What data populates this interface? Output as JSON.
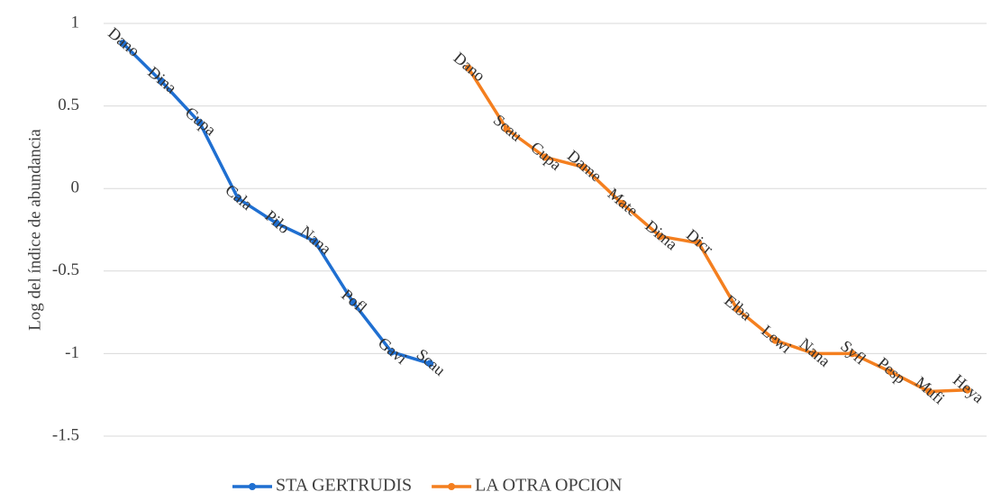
{
  "chart_data": {
    "type": "line",
    "y_label": "Log del índice de abundancia",
    "categories": [
      null,
      null,
      null,
      null,
      null,
      null,
      null,
      null,
      null,
      null,
      null,
      null,
      null,
      null,
      null,
      null,
      null,
      null,
      null,
      null,
      null,
      null,
      null
    ],
    "series": [
      {
        "name": "STA GERTRUDIS",
        "color": "#1f6fd1",
        "values": [
          0.88,
          0.65,
          0.4,
          -0.06,
          -0.21,
          -0.32,
          -0.69,
          -0.99,
          -1.06,
          null,
          null,
          null,
          null,
          null,
          null,
          null,
          null,
          null,
          null,
          null,
          null,
          null,
          null
        ],
        "point_labels": [
          "Dano",
          "Dina",
          "Cupa",
          "Cala",
          "Pilo",
          "Nana",
          "Pofl",
          "Gavi",
          "Scau",
          null,
          null,
          null,
          null,
          null,
          null,
          null,
          null,
          null,
          null,
          null,
          null,
          null,
          null
        ]
      },
      {
        "name": "LA OTRA OPCION",
        "color": "#f47f1f",
        "values": [
          null,
          null,
          null,
          null,
          null,
          null,
          null,
          null,
          null,
          0.73,
          0.36,
          0.19,
          0.13,
          -0.09,
          -0.29,
          -0.33,
          -0.73,
          -0.92,
          -1.0,
          -1.0,
          -1.11,
          -1.23,
          -1.22
        ],
        "point_labels": [
          null,
          null,
          null,
          null,
          null,
          null,
          null,
          null,
          null,
          "Dano",
          "Scau",
          "Cupa",
          "Dame",
          "Mate",
          "Dima",
          "Dicr",
          "Elba",
          "Lewi",
          "Nana",
          "Syfl",
          "Pesp",
          "Mufi",
          "Heya"
        ]
      }
    ],
    "ylim": [
      -1.5,
      1
    ],
    "yticks": [
      -1.5,
      -1,
      -0.5,
      0,
      0.5,
      1
    ],
    "grid": true,
    "legend": "bottom"
  }
}
